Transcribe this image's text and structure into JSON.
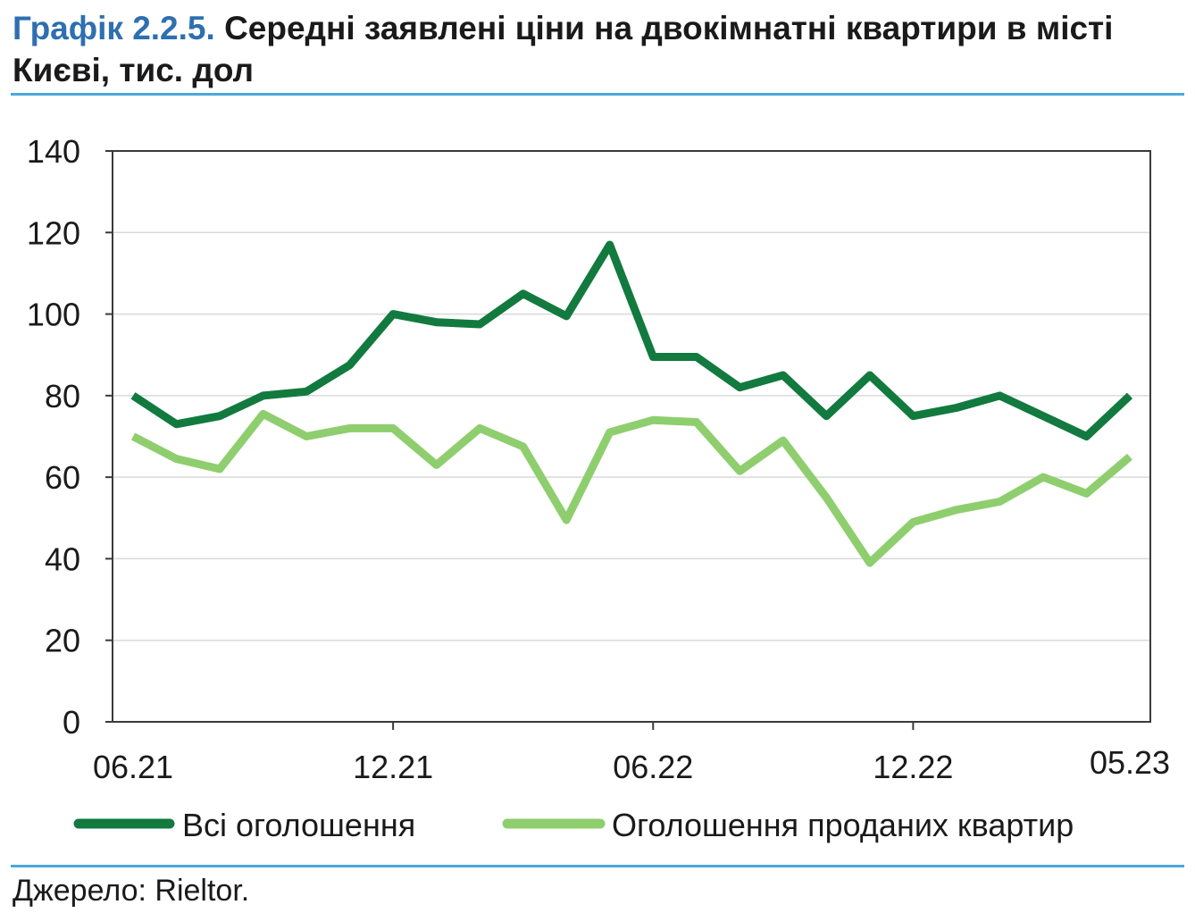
{
  "figure": {
    "label": "Графік 2.2.5.",
    "title": "Середні заявлені ціни на двокімнатні квартири в місті Києві, тис. дол",
    "source": "Джерело: Rieltor."
  },
  "colors": {
    "accent_label": "#2e6fb0",
    "rule": "#4aa8dc",
    "series_all": "#127a3f",
    "series_sold": "#8fce6e"
  },
  "chart_data": {
    "type": "line",
    "x": [
      "06.21",
      "07.21",
      "08.21",
      "09.21",
      "10.21",
      "11.21",
      "12.21",
      "01.22",
      "02.22",
      "03.22",
      "04.22",
      "05.22",
      "06.22",
      "07.22",
      "08.22",
      "09.22",
      "10.22",
      "11.22",
      "12.22",
      "01.23",
      "02.23",
      "03.23",
      "04.23",
      "05.23"
    ],
    "x_tick_labels": [
      "06.21",
      "12.21",
      "06.22",
      "12.22",
      "05.23"
    ],
    "series": [
      {
        "name": "Всі оголошення",
        "color": "#127a3f",
        "values": [
          80,
          73,
          75,
          80,
          81,
          87.5,
          100,
          98,
          97.5,
          105,
          99.5,
          117,
          89.5,
          89.5,
          82,
          85,
          75,
          85,
          75,
          77,
          80,
          75,
          70,
          80
        ]
      },
      {
        "name": "Оголошення проданих квартир",
        "color": "#8fce6e",
        "values": [
          70,
          64.5,
          62,
          75.5,
          70,
          72,
          72,
          63,
          72,
          67.5,
          49.5,
          71,
          74,
          73.5,
          61.5,
          69,
          55,
          39,
          49,
          52,
          54,
          60,
          56,
          65
        ]
      }
    ],
    "ylim": [
      0,
      140
    ],
    "yticks": [
      0,
      20,
      40,
      60,
      80,
      100,
      120,
      140
    ],
    "grid": true,
    "legend_position": "bottom"
  }
}
